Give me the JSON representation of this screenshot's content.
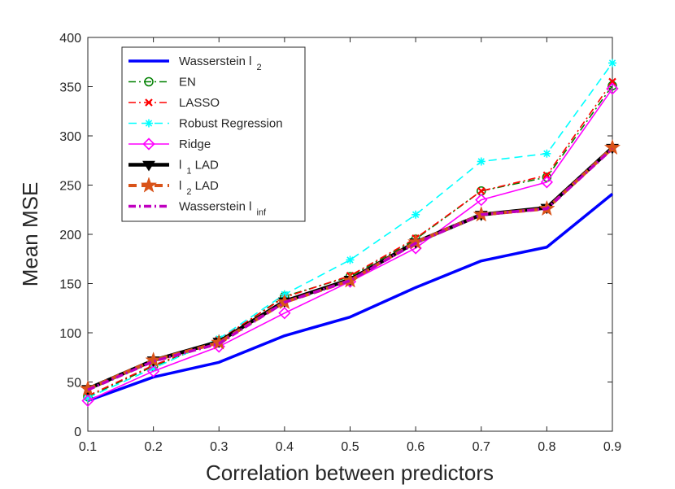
{
  "chart_data": {
    "type": "line",
    "title": "",
    "xlabel": "Correlation between predictors",
    "ylabel": "Mean MSE",
    "x": [
      0.1,
      0.2,
      0.3,
      0.4,
      0.5,
      0.6,
      0.7,
      0.8,
      0.9
    ],
    "xlim": [
      0.1,
      0.9
    ],
    "ylim": [
      0,
      400
    ],
    "xticks": [
      "0.1",
      "0.2",
      "0.3",
      "0.4",
      "0.5",
      "0.6",
      "0.7",
      "0.8",
      "0.9"
    ],
    "yticks": [
      "0",
      "50",
      "100",
      "150",
      "200",
      "250",
      "300",
      "350",
      "400"
    ],
    "grid": false,
    "legend_position": "top-left",
    "series": [
      {
        "name": "Wasserstein l",
        "subscript": "2",
        "color": "#0000ff",
        "dash": "solid",
        "marker": "none",
        "values": [
          31,
          55,
          70,
          97,
          116,
          146,
          173,
          187,
          241
        ]
      },
      {
        "name": "EN",
        "subscript": "",
        "color": "#008000",
        "dash": "dashdot",
        "marker": "circle",
        "values": [
          35,
          66,
          92,
          137,
          157,
          195,
          244,
          258,
          351
        ]
      },
      {
        "name": "LASSO",
        "subscript": "",
        "color": "#ff0000",
        "dash": "dashdot",
        "marker": "x",
        "values": [
          36,
          67,
          93,
          136,
          158,
          196,
          244,
          260,
          355
        ]
      },
      {
        "name": "Robust Regression",
        "subscript": "",
        "color": "#00ffff",
        "dash": "dashed",
        "marker": "asterisk",
        "values": [
          34,
          64,
          94,
          139,
          174,
          220,
          274,
          282,
          374
        ]
      },
      {
        "name": "Ridge",
        "subscript": "",
        "color": "#ff00ff",
        "dash": "solid",
        "marker": "diamond",
        "values": [
          31,
          61,
          86,
          120,
          152,
          186,
          235,
          253,
          348
        ]
      },
      {
        "name": "l",
        "subscript": "1",
        "suffix": " LAD",
        "color": "#000000",
        "dash": "solid",
        "marker": "triangle-down",
        "values": [
          43,
          72,
          91,
          132,
          154,
          192,
          220,
          227,
          288
        ]
      },
      {
        "name": "l",
        "subscript": "2",
        "suffix": " LAD",
        "color": "#d95319",
        "dash": "dashed",
        "marker": "star",
        "values": [
          43,
          72,
          90,
          131,
          153,
          192,
          220,
          226,
          288
        ]
      },
      {
        "name": "Wasserstein l",
        "subscript": "inf",
        "color": "#bf00bf",
        "dash": "dashdot",
        "marker": "none",
        "values": [
          42,
          71,
          89,
          131,
          153,
          191,
          220,
          226,
          287
        ]
      }
    ]
  }
}
